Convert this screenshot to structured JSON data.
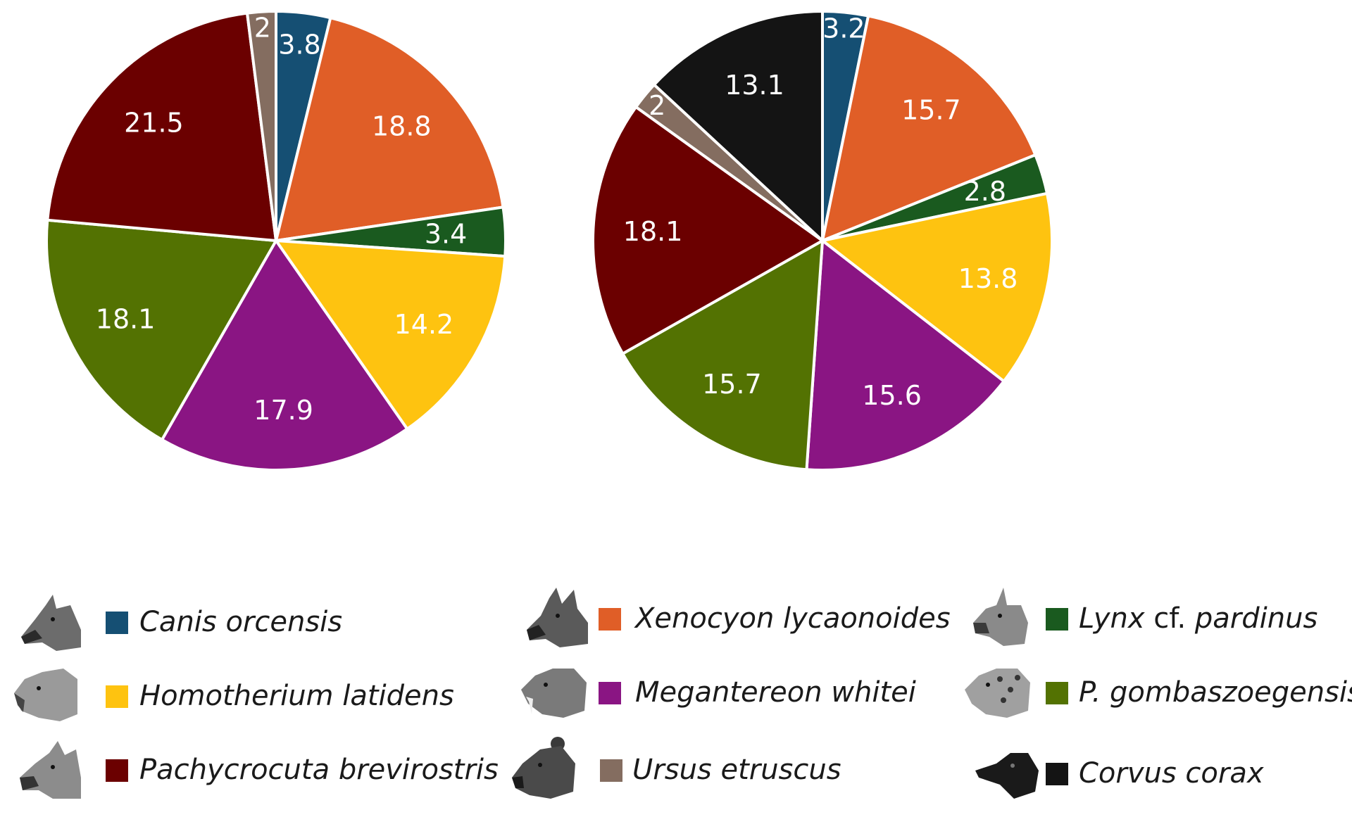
{
  "chart_data": [
    {
      "type": "pie",
      "slices": [
        {
          "label": "Canis orcensis",
          "value": 3.8,
          "text": "3.8",
          "color": "#154f73"
        },
        {
          "label": "Xenocyon lycaonoides",
          "value": 18.8,
          "text": "18.8",
          "color": "#e05e27"
        },
        {
          "label": "Lynx cf. pardinus",
          "value": 3.4,
          "text": "3.4",
          "color": "#1a5a1f"
        },
        {
          "label": "Homotherium latidens",
          "value": 14.2,
          "text": "14.2",
          "color": "#fec310"
        },
        {
          "label": "Megantereon whitei",
          "value": 17.9,
          "text": "17.9",
          "color": "#8a1583"
        },
        {
          "label": "P. gombaszoegensis",
          "value": 18.1,
          "text": "18.1",
          "color": "#537202"
        },
        {
          "label": "Pachycrocuta brevirostris",
          "value": 21.5,
          "text": "21.5",
          "color": "#6b0000"
        },
        {
          "label": "Ursus etruscus",
          "value": 2,
          "text": "2",
          "color": "#846d60"
        }
      ]
    },
    {
      "type": "pie",
      "slices": [
        {
          "label": "Canis orcensis",
          "value": 3.2,
          "text": "3.2",
          "color": "#154f73"
        },
        {
          "label": "Xenocyon lycaonoides",
          "value": 15.7,
          "text": "15.7",
          "color": "#e05e27"
        },
        {
          "label": "Lynx cf. pardinus",
          "value": 2.8,
          "text": "2.8",
          "color": "#1a5a1f"
        },
        {
          "label": "Homotherium latidens",
          "value": 13.8,
          "text": "13.8",
          "color": "#fec310"
        },
        {
          "label": "Megantereon whitei",
          "value": 15.6,
          "text": "15.6",
          "color": "#8a1583"
        },
        {
          "label": "P. gombaszoegensis",
          "value": 15.7,
          "text": "15.7",
          "color": "#537202"
        },
        {
          "label": "Pachycrocuta brevirostris",
          "value": 18.1,
          "text": "18.1",
          "color": "#6b0000"
        },
        {
          "label": "Ursus etruscus",
          "value": 2,
          "text": "2",
          "color": "#846d60"
        },
        {
          "label": "Corvus corax",
          "value": 13.1,
          "text": "13.1",
          "color": "#141414"
        }
      ]
    }
  ],
  "legend": [
    {
      "label": "Canis orcensis",
      "label_pre": "Canis orcensis",
      "label_mid": "",
      "label_post": "",
      "color": "#154f73",
      "icon": "wolf-head-icon"
    },
    {
      "label": "Xenocyon lycaonoides",
      "label_pre": "Xenocyon lycaonoides",
      "label_mid": "",
      "label_post": "",
      "color": "#e05e27",
      "icon": "wild-dog-head-icon"
    },
    {
      "label": "Lynx cf. pardinus",
      "label_pre": "Lynx ",
      "label_mid": "cf.",
      "label_post": " pardinus",
      "color": "#1a5a1f",
      "icon": "lynx-head-icon"
    },
    {
      "label": "Homotherium latidens",
      "label_pre": "Homotherium latidens",
      "label_mid": "",
      "label_post": "",
      "color": "#fec310",
      "icon": "scimitar-cat-head-icon"
    },
    {
      "label": "Megantereon whitei",
      "label_pre": "Megantereon whitei",
      "label_mid": "",
      "label_post": "",
      "color": "#8a1583",
      "icon": "sabertooth-head-icon"
    },
    {
      "label": "P. gombaszoegensis",
      "label_pre": "P. gombaszoegensis",
      "label_mid": "",
      "label_post": "",
      "color": "#537202",
      "icon": "jaguar-head-icon"
    },
    {
      "label": "Pachycrocuta brevirostris",
      "label_pre": "Pachycrocuta brevirostris",
      "label_mid": "",
      "label_post": "",
      "color": "#6b0000",
      "icon": "hyena-head-icon"
    },
    {
      "label": "Ursus etruscus",
      "label_pre": "Ursus etruscus",
      "label_mid": "",
      "label_post": "",
      "color": "#846d60",
      "icon": "bear-head-icon"
    },
    {
      "label": "Corvus corax",
      "label_pre": "Corvus corax",
      "label_mid": "",
      "label_post": "",
      "color": "#141414",
      "icon": "raven-head-icon"
    }
  ]
}
